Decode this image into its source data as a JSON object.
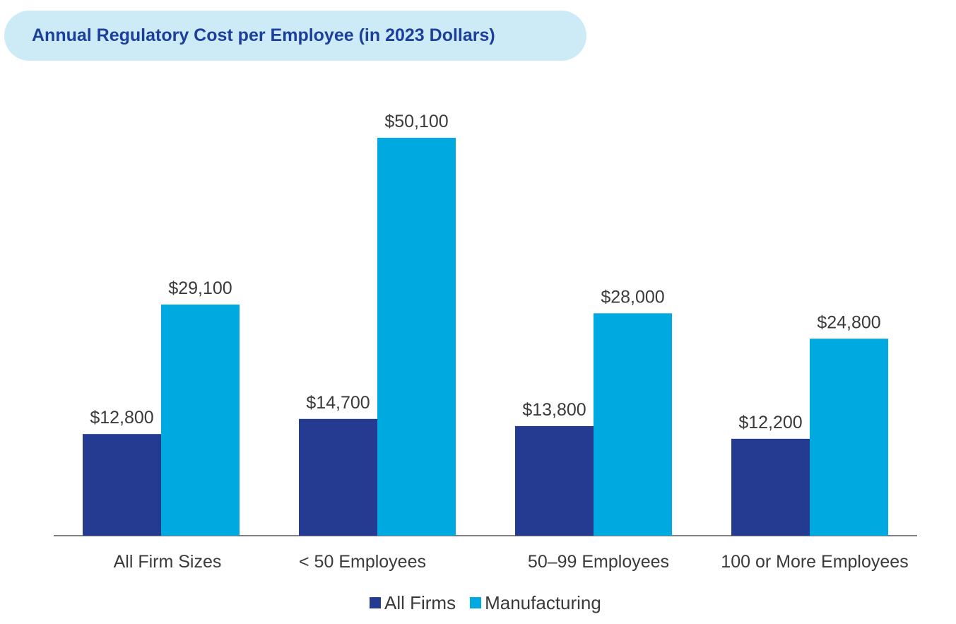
{
  "title": "Annual Regulatory Cost per Employee (in 2023 Dollars)",
  "colors": {
    "title_bg": "#cdebf7",
    "title_text": "#1d3f9c",
    "all_firms": "#253b91",
    "manufacturing": "#00a9e0",
    "axis": "#555555",
    "label_text": "#3a3a3a"
  },
  "chart_data": {
    "type": "bar",
    "title": "Annual Regulatory Cost per Employee (in 2023 Dollars)",
    "categories": [
      "All Firm Sizes",
      "< 50 Employees",
      "50–99 Employees",
      "100 or More Employees"
    ],
    "series": [
      {
        "name": "All Firms",
        "values": [
          12800,
          14700,
          13800,
          12200
        ],
        "labels": [
          "$12,800",
          "$14,700",
          "$13,800",
          "$12,200"
        ]
      },
      {
        "name": "Manufacturing",
        "values": [
          29100,
          50100,
          28000,
          24800
        ],
        "labels": [
          "$29,100",
          "$50,100",
          "$28,000",
          "$24,800"
        ]
      }
    ],
    "xlabel": "",
    "ylabel": "",
    "ylim": [
      0,
      50100
    ],
    "grid": false,
    "legend_position": "bottom-center"
  }
}
